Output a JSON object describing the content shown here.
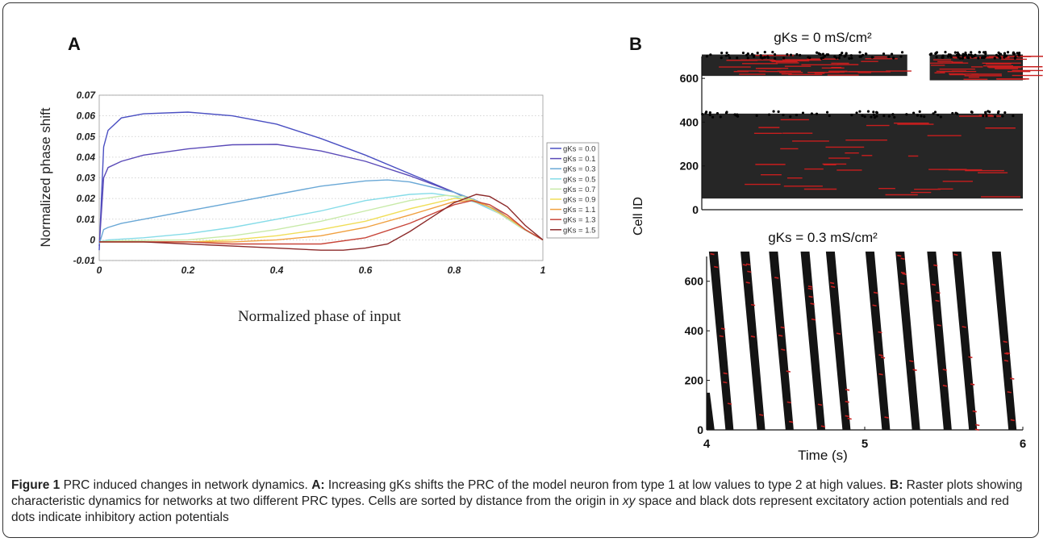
{
  "panel_a_letter": "A",
  "panel_b_letter": "B",
  "chart_data": [
    {
      "type": "line",
      "xlabel": "Normalized phase of input",
      "ylabel": "Normalized phase shift",
      "xlim": [
        0,
        1
      ],
      "ylim": [
        -0.01,
        0.07
      ],
      "xticks": [
        "0",
        "0.2",
        "0.4",
        "0.6",
        "0.8",
        "1"
      ],
      "yticks": [
        "-0.01",
        "0",
        "0.01",
        "0.02",
        "0.03",
        "0.04",
        "0.05",
        "0.06",
        "0.07"
      ],
      "grid": "horizontal dotted",
      "legend_position": "right",
      "series": [
        {
          "name": "gKs = 0.0",
          "color": "#4a4fc2",
          "x": [
            0,
            0.01,
            0.02,
            0.05,
            0.1,
            0.2,
            0.3,
            0.4,
            0.5,
            0.6,
            0.7,
            0.8,
            0.85,
            0.9,
            0.95,
            1.0
          ],
          "y": [
            -0.005,
            0.045,
            0.053,
            0.059,
            0.061,
            0.0618,
            0.06,
            0.056,
            0.049,
            0.041,
            0.032,
            0.023,
            0.018,
            0.013,
            0.006,
            0.0
          ]
        },
        {
          "name": "gKs = 0.1",
          "color": "#5a4ab8",
          "x": [
            0,
            0.01,
            0.02,
            0.05,
            0.1,
            0.2,
            0.3,
            0.4,
            0.5,
            0.6,
            0.7,
            0.8,
            0.85,
            0.9,
            0.95,
            1.0
          ],
          "y": [
            -0.003,
            0.03,
            0.035,
            0.038,
            0.041,
            0.044,
            0.046,
            0.0462,
            0.043,
            0.038,
            0.031,
            0.023,
            0.019,
            0.014,
            0.006,
            0.0
          ]
        },
        {
          "name": "gKs = 0.3",
          "color": "#6aa8d6",
          "x": [
            0,
            0.01,
            0.02,
            0.05,
            0.1,
            0.2,
            0.3,
            0.4,
            0.5,
            0.6,
            0.65,
            0.7,
            0.8,
            0.85,
            0.9,
            0.95,
            1.0
          ],
          "y": [
            -0.002,
            0.005,
            0.006,
            0.008,
            0.01,
            0.014,
            0.018,
            0.022,
            0.026,
            0.0285,
            0.029,
            0.028,
            0.023,
            0.019,
            0.014,
            0.006,
            0.0
          ]
        },
        {
          "name": "gKs = 0.5",
          "color": "#86dce8",
          "x": [
            0,
            0.02,
            0.1,
            0.2,
            0.3,
            0.4,
            0.5,
            0.6,
            0.7,
            0.75,
            0.8,
            0.85,
            0.9,
            0.95,
            1.0
          ],
          "y": [
            -0.001,
            0.0,
            0.001,
            0.003,
            0.006,
            0.01,
            0.014,
            0.019,
            0.022,
            0.0225,
            0.021,
            0.018,
            0.013,
            0.006,
            0.0
          ]
        },
        {
          "name": "gKs = 0.7",
          "color": "#c8eaa8",
          "x": [
            0,
            0.02,
            0.1,
            0.2,
            0.3,
            0.4,
            0.5,
            0.6,
            0.7,
            0.78,
            0.82,
            0.86,
            0.9,
            0.95,
            1.0
          ],
          "y": [
            -0.001,
            -0.0005,
            -0.0003,
            0.0,
            0.002,
            0.005,
            0.009,
            0.014,
            0.019,
            0.0215,
            0.021,
            0.018,
            0.013,
            0.006,
            0.0
          ]
        },
        {
          "name": "gKs = 0.9",
          "color": "#f0de58",
          "x": [
            0,
            0.02,
            0.1,
            0.2,
            0.3,
            0.4,
            0.5,
            0.6,
            0.7,
            0.8,
            0.84,
            0.88,
            0.92,
            0.96,
            1.0
          ],
          "y": [
            -0.001,
            -0.001,
            -0.001,
            -0.001,
            0.0,
            0.002,
            0.005,
            0.009,
            0.015,
            0.02,
            0.0195,
            0.016,
            0.011,
            0.005,
            0.0
          ]
        },
        {
          "name": "gKs = 1.1",
          "color": "#f0a040",
          "x": [
            0,
            0.02,
            0.1,
            0.2,
            0.3,
            0.4,
            0.5,
            0.6,
            0.7,
            0.8,
            0.84,
            0.88,
            0.92,
            0.96,
            1.0
          ],
          "y": [
            -0.001,
            -0.001,
            -0.001,
            -0.001,
            -0.001,
            0.0,
            0.002,
            0.006,
            0.012,
            0.0185,
            0.019,
            0.016,
            0.011,
            0.005,
            0.0
          ]
        },
        {
          "name": "gKs = 1.3",
          "color": "#c8463a",
          "x": [
            0,
            0.02,
            0.1,
            0.2,
            0.3,
            0.4,
            0.5,
            0.6,
            0.7,
            0.8,
            0.84,
            0.88,
            0.92,
            0.96,
            1.0
          ],
          "y": [
            -0.001,
            -0.001,
            -0.001,
            -0.001,
            -0.002,
            -0.002,
            -0.002,
            0.001,
            0.008,
            0.017,
            0.019,
            0.017,
            0.012,
            0.005,
            0.0
          ]
        },
        {
          "name": "gKs = 1.5",
          "color": "#8c2a2a",
          "x": [
            0,
            0.02,
            0.1,
            0.2,
            0.3,
            0.4,
            0.5,
            0.55,
            0.6,
            0.65,
            0.7,
            0.75,
            0.8,
            0.85,
            0.88,
            0.92,
            0.96,
            1.0
          ],
          "y": [
            -0.001,
            -0.001,
            -0.001,
            -0.002,
            -0.003,
            -0.004,
            -0.005,
            -0.005,
            -0.004,
            -0.002,
            0.004,
            0.011,
            0.018,
            0.022,
            0.021,
            0.016,
            0.007,
            0.0
          ]
        }
      ]
    },
    {
      "type": "scatter",
      "title": "gKs = 0 mS/cm²",
      "ylabel": "Cell ID",
      "xlim": [
        4,
        6
      ],
      "ylim": [
        0,
        700
      ],
      "yticks": [
        "0",
        "200",
        "400",
        "600"
      ],
      "colors": {
        "excitatory": "#000000",
        "inhibitory": "#c81e1e"
      },
      "bands": [
        {
          "x0": 4.0,
          "x1": 5.28,
          "y0": 600,
          "y1": 720
        },
        {
          "x0": 5.42,
          "x1": 6.0,
          "y0": 580,
          "y1": 720
        },
        {
          "x0": 4.0,
          "x1": 6.0,
          "y0": 40,
          "y1": 450
        }
      ]
    },
    {
      "type": "scatter",
      "title": "gKs = 0.3 mS/cm²",
      "xlabel": "Time (s)",
      "xlim": [
        4,
        6
      ],
      "ylim": [
        0,
        700
      ],
      "xticks": [
        "4",
        "5",
        "6"
      ],
      "yticks": [
        "0",
        "200",
        "400",
        "600"
      ],
      "colors": {
        "excitatory": "#000000",
        "inhibitory": "#c81e1e"
      },
      "waves": [
        4.04,
        4.24,
        4.42,
        4.62,
        4.78,
        5.03,
        5.22,
        5.42,
        5.58,
        5.83
      ]
    }
  ],
  "caption": {
    "figure_label": "Figure 1",
    "title": " PRC induced changes in network dynamics. ",
    "a_label": "A:",
    "a_text": " Increasing gKs shifts the PRC of the model neuron from type 1 at low values to type 2 at high values. ",
    "b_label": "B:",
    "b_text_1": " Raster plots showing characteristic dynamics for networks at two different PRC types. Cells are sorted by distance from the origin in ",
    "b_italic": "xy",
    "b_text_2": " space and black dots represent excitatory action potentials and red dots indicate inhibitory action potentials"
  }
}
